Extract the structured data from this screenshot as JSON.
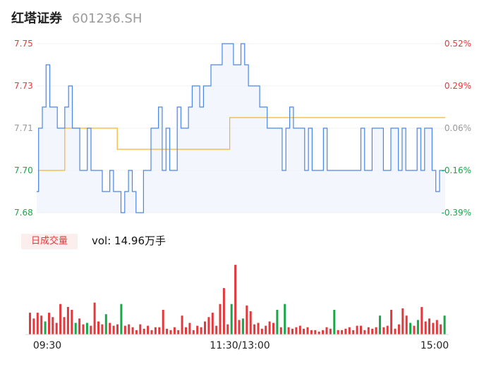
{
  "header": {
    "name": "红塔证券",
    "code": "601236.SH"
  },
  "volume_panel": {
    "tag": "日成交量",
    "readout": "vol: 14.96万手"
  },
  "colors": {
    "price": "#4a86e8",
    "avg": "#f5b331",
    "up": "#e4393c",
    "down": "#19a74a",
    "flat": "#999999",
    "fill": "#eef3fc"
  },
  "chart_data": [
    {
      "type": "line",
      "title": "",
      "x_ticks": [
        "09:30",
        "11:30/13:00",
        "15:00"
      ],
      "y_left_ticks": [
        "7.75",
        "7.73",
        "7.71",
        "7.70",
        "7.68"
      ],
      "y_right_ticks": [
        "0.52%",
        "0.29%",
        "0.06%",
        "-0.16%",
        "-0.39%"
      ],
      "ylim": [
        7.68,
        7.75
      ],
      "series": [
        {
          "key": "price",
          "values": [
            7.69,
            7.71,
            7.72,
            7.74,
            7.72,
            7.72,
            7.71,
            7.71,
            7.72,
            7.73,
            7.71,
            7.71,
            7.7,
            7.7,
            7.71,
            7.7,
            7.7,
            7.7,
            7.69,
            7.69,
            7.7,
            7.69,
            7.69,
            7.68,
            7.69,
            7.7,
            7.69,
            7.68,
            7.68,
            7.7,
            7.7,
            7.71,
            7.71,
            7.72,
            7.7,
            7.71,
            7.7,
            7.7,
            7.72,
            7.71,
            7.71,
            7.72,
            7.73,
            7.73,
            7.72,
            7.73,
            7.73,
            7.74,
            7.74,
            7.74,
            7.75,
            7.75,
            7.75,
            7.74,
            7.74,
            7.75,
            7.74,
            7.73,
            7.73,
            7.73,
            7.72,
            7.72,
            7.71,
            7.71,
            7.71,
            7.71,
            7.7,
            7.71,
            7.72,
            7.71,
            7.71,
            7.71,
            7.7,
            7.71,
            7.7,
            7.7,
            7.7,
            7.71,
            7.7,
            7.7,
            7.7,
            7.7,
            7.7,
            7.7,
            7.7,
            7.7,
            7.7,
            7.71,
            7.7,
            7.7,
            7.71,
            7.71,
            7.71,
            7.7,
            7.7,
            7.71,
            7.71,
            7.7,
            7.71,
            7.7,
            7.7,
            7.7,
            7.71,
            7.7,
            7.71,
            7.71,
            7.7,
            7.69,
            7.7,
            7.7
          ]
        },
        {
          "key": "avg",
          "values": [
            7.69,
            7.7,
            7.7,
            7.7,
            7.7,
            7.7,
            7.7,
            7.7,
            7.71,
            7.71,
            7.71,
            7.71,
            7.71,
            7.71,
            7.71,
            7.71,
            7.71,
            7.71,
            7.71,
            7.71,
            7.71,
            7.71,
            7.705,
            7.705,
            7.705,
            7.705,
            7.705,
            7.705,
            7.705,
            7.705,
            7.705,
            7.705,
            7.705,
            7.705,
            7.705,
            7.705,
            7.705,
            7.705,
            7.705,
            7.705,
            7.705,
            7.705,
            7.705,
            7.705,
            7.705,
            7.705,
            7.705,
            7.705,
            7.705,
            7.705,
            7.705,
            7.705,
            7.715,
            7.715,
            7.715,
            7.715,
            7.715,
            7.715,
            7.715,
            7.715,
            7.715,
            7.715,
            7.715,
            7.715,
            7.715,
            7.715,
            7.715,
            7.715,
            7.715,
            7.715,
            7.715,
            7.715,
            7.715,
            7.715,
            7.715,
            7.715,
            7.715,
            7.715,
            7.715,
            7.715,
            7.715,
            7.715,
            7.715,
            7.715,
            7.715,
            7.715,
            7.715,
            7.715,
            7.715,
            7.715,
            7.715,
            7.715,
            7.715,
            7.715,
            7.715,
            7.715,
            7.715,
            7.715,
            7.715,
            7.715,
            7.715,
            7.715,
            7.715,
            7.715,
            7.715,
            7.715,
            7.715,
            7.715,
            7.715,
            7.715
          ]
        }
      ]
    },
    {
      "type": "bar",
      "title": "",
      "ylim": [
        0,
        100
      ],
      "values": [
        30,
        22,
        30,
        26,
        18,
        30,
        24,
        16,
        42,
        24,
        38,
        34,
        16,
        22,
        14,
        16,
        12,
        44,
        18,
        14,
        28,
        16,
        12,
        14,
        42,
        12,
        14,
        10,
        6,
        14,
        8,
        12,
        6,
        10,
        10,
        34,
        8,
        6,
        10,
        6,
        26,
        10,
        16,
        6,
        12,
        10,
        18,
        24,
        30,
        12,
        42,
        64,
        14,
        42,
        96,
        20,
        22,
        40,
        32,
        14,
        16,
        8,
        12,
        18,
        16,
        34,
        10,
        42,
        10,
        8,
        10,
        12,
        8,
        10,
        6,
        6,
        4,
        6,
        10,
        8,
        34,
        6,
        6,
        8,
        10,
        6,
        12,
        12,
        6,
        10,
        8,
        10,
        26,
        10,
        12,
        34,
        8,
        14,
        36,
        26,
        16,
        12,
        20,
        38,
        18,
        22,
        16,
        20,
        14,
        26
      ],
      "directions": [
        "up",
        "up",
        "up",
        "up",
        "down",
        "up",
        "up",
        "up",
        "up",
        "up",
        "up",
        "up",
        "down",
        "up",
        "up",
        "down",
        "up",
        "up",
        "up",
        "up",
        "down",
        "up",
        "up",
        "up",
        "down",
        "up",
        "up",
        "up",
        "up",
        "up",
        "up",
        "up",
        "up",
        "up",
        "up",
        "up",
        "up",
        "up",
        "up",
        "up",
        "up",
        "up",
        "up",
        "up",
        "up",
        "up",
        "up",
        "up",
        "up",
        "up",
        "up",
        "up",
        "up",
        "down",
        "up",
        "up",
        "down",
        "up",
        "up",
        "up",
        "up",
        "up",
        "up",
        "up",
        "up",
        "down",
        "up",
        "down",
        "up",
        "up",
        "up",
        "up",
        "up",
        "up",
        "up",
        "up",
        "up",
        "up",
        "up",
        "up",
        "down",
        "up",
        "up",
        "up",
        "up",
        "up",
        "up",
        "up",
        "up",
        "up",
        "up",
        "up",
        "down",
        "up",
        "up",
        "up",
        "up",
        "up",
        "up",
        "up",
        "down",
        "up",
        "down",
        "up",
        "up",
        "up",
        "up",
        "up",
        "up",
        "down"
      ]
    }
  ]
}
